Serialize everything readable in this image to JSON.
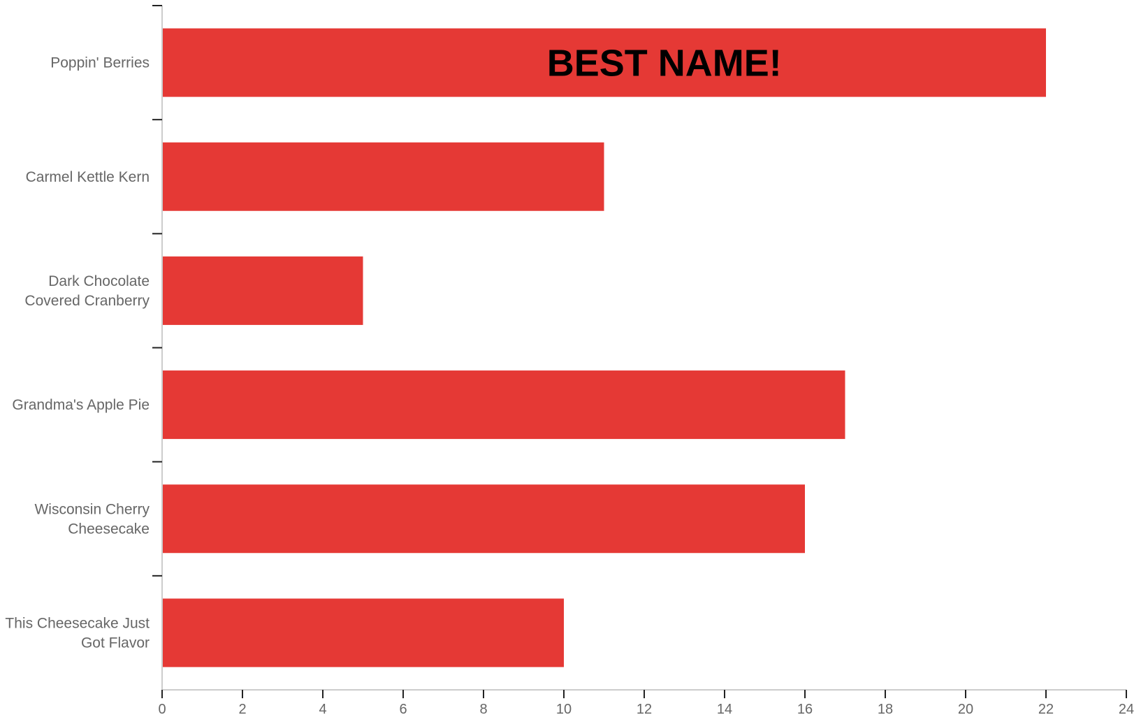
{
  "chart_data": {
    "type": "bar",
    "orientation": "horizontal",
    "categories": [
      [
        "Poppin' Berries"
      ],
      [
        "Carmel Kettle Kern"
      ],
      [
        "Dark Chocolate",
        "Covered Cranberry"
      ],
      [
        "Grandma's Apple Pie"
      ],
      [
        "Wisconsin Cherry",
        "Cheesecake"
      ],
      [
        "This Cheesecake Just",
        "Got Flavor"
      ]
    ],
    "values": [
      22,
      11,
      5,
      17,
      16,
      10
    ],
    "title": "",
    "xlabel": "",
    "ylabel": "",
    "xlim": [
      0,
      24
    ],
    "xticks": [
      "0",
      "2",
      "4",
      "6",
      "8",
      "10",
      "12",
      "14",
      "16",
      "18",
      "20",
      "22",
      "24"
    ],
    "grid": false,
    "legend": "none",
    "bar_color": "#e53935",
    "annotations": [
      {
        "text": "BEST NAME!",
        "category_index": 0,
        "at_value": 12.5
      }
    ]
  }
}
